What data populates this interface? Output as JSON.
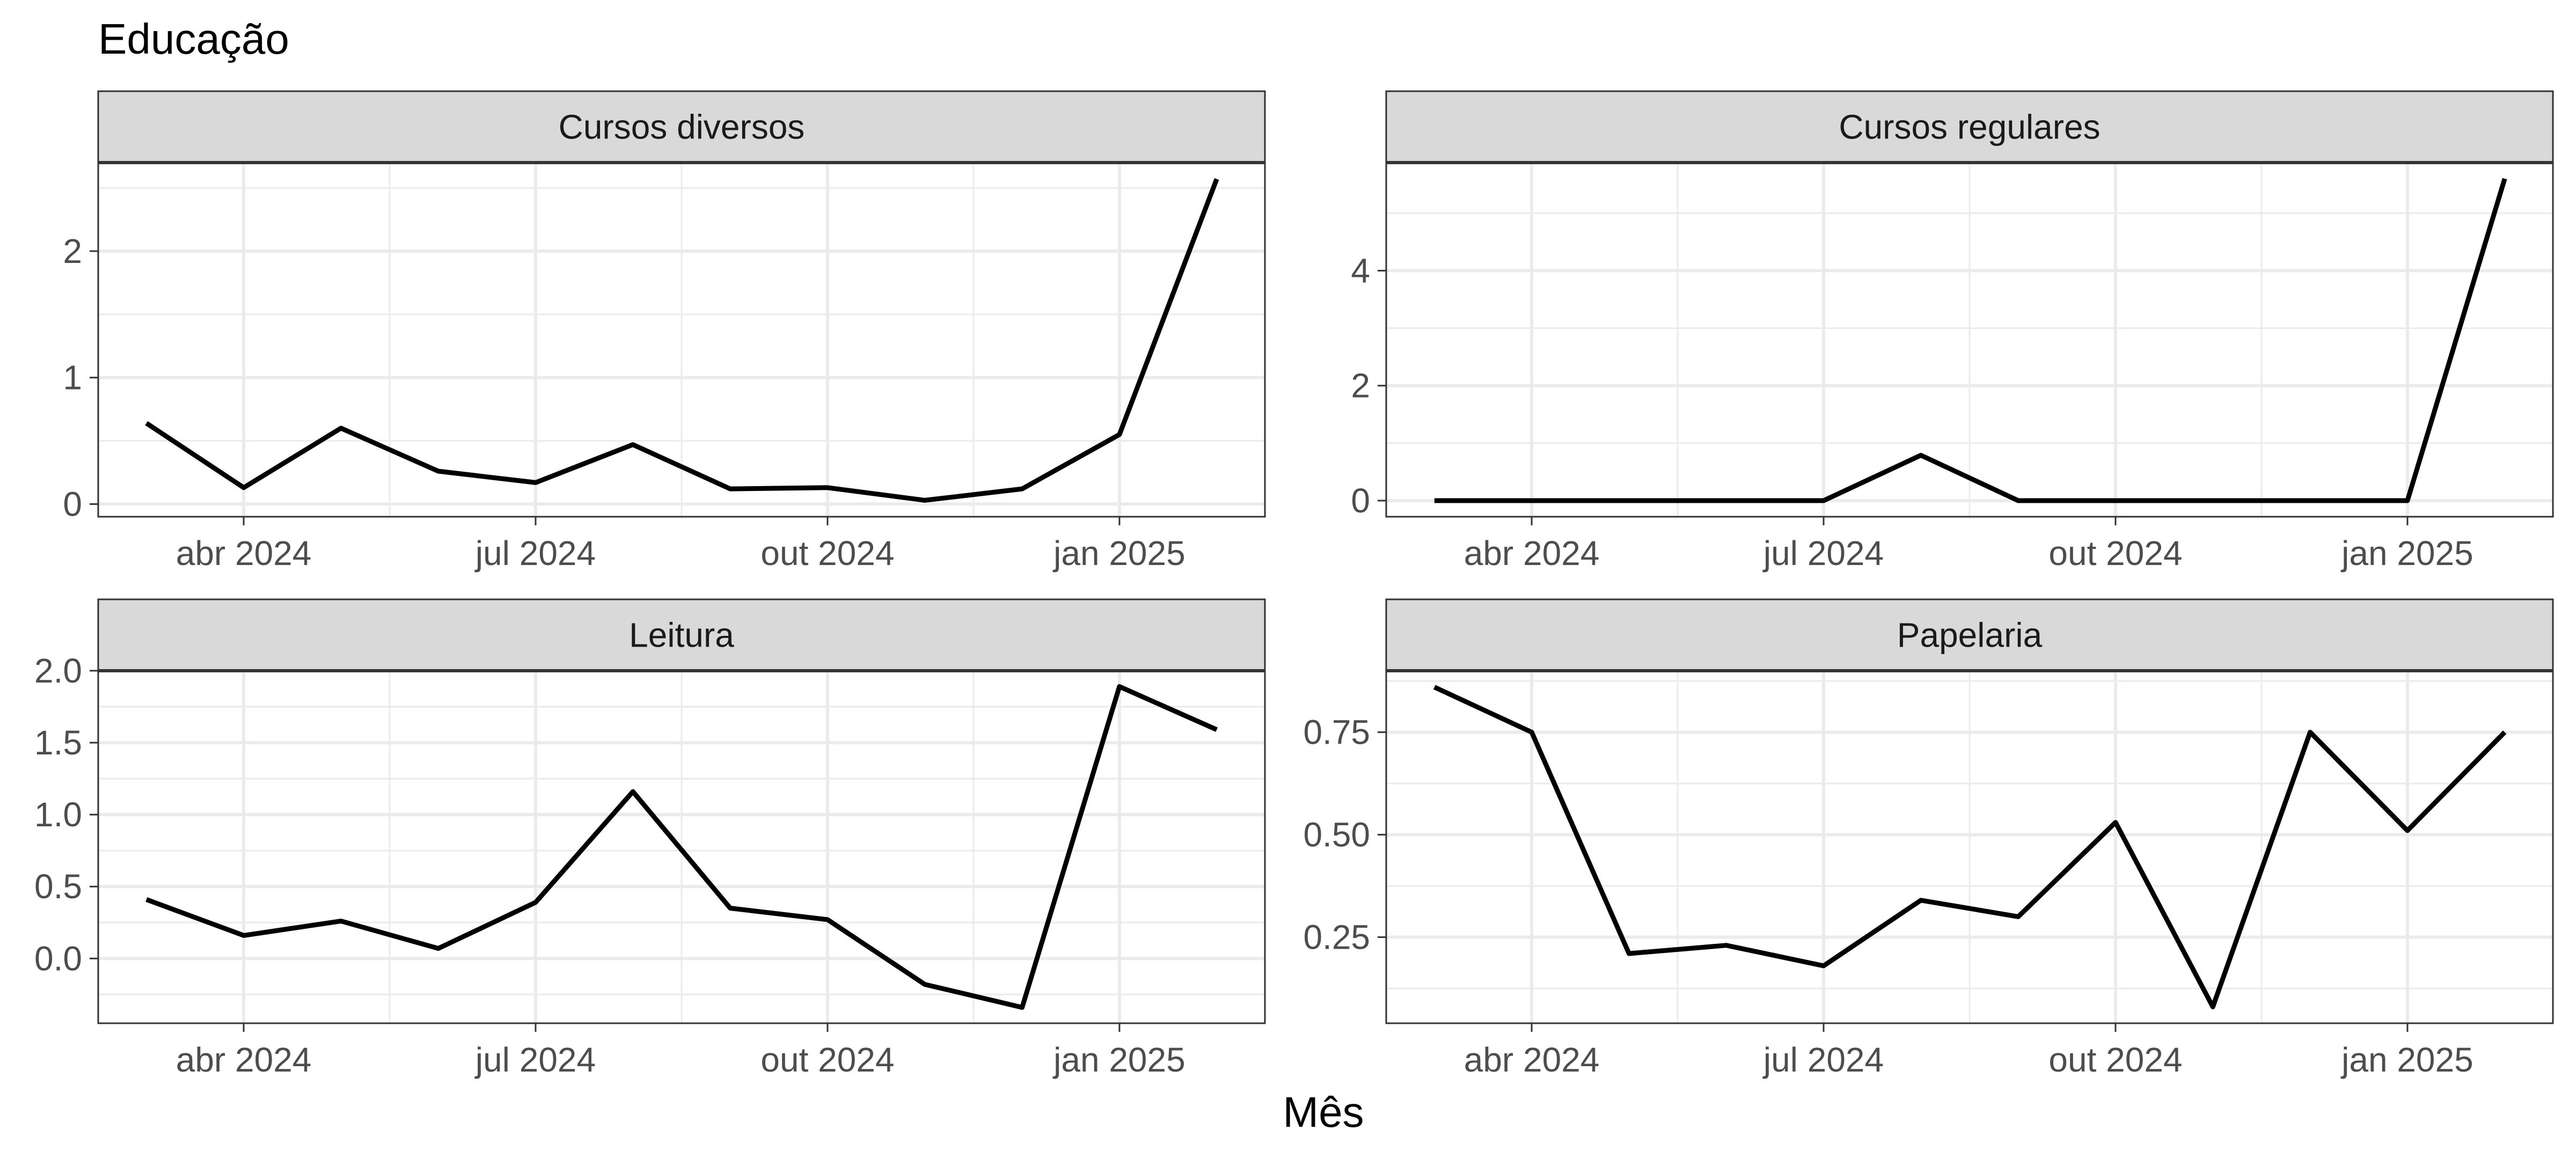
{
  "title": "Educação",
  "xlabel": "Mês",
  "colors": {
    "line": "#000000",
    "grid": "#ebebeb",
    "panel_border": "#333333",
    "strip_fill": "#d9d9d9",
    "tick_text": "#4d4d4d"
  },
  "chart_data": [
    {
      "type": "line",
      "facet": "Cursos diversos",
      "x": [
        "2024-03",
        "2024-04",
        "2024-05",
        "2024-06",
        "2024-07",
        "2024-08",
        "2024-09",
        "2024-10",
        "2024-11",
        "2024-12",
        "2025-01",
        "2025-02"
      ],
      "y": [
        0.64,
        0.13,
        0.6,
        0.26,
        0.17,
        0.47,
        0.12,
        0.13,
        0.03,
        0.12,
        0.55,
        2.57
      ],
      "xticks": [
        "2024-04",
        "2024-07",
        "2024-10",
        "2025-01"
      ],
      "xtick_labels": [
        "abr 2024",
        "jul 2024",
        "out 2024",
        "jan 2025"
      ],
      "yticks": [
        0,
        1,
        2
      ],
      "ytick_labels": [
        "0",
        "1",
        "2"
      ],
      "ylim": [
        -0.1,
        2.7
      ]
    },
    {
      "type": "line",
      "facet": "Cursos regulares",
      "x": [
        "2024-03",
        "2024-04",
        "2024-05",
        "2024-06",
        "2024-07",
        "2024-08",
        "2024-09",
        "2024-10",
        "2024-11",
        "2024-12",
        "2025-01",
        "2025-02"
      ],
      "y": [
        0.0,
        0.0,
        0.0,
        0.0,
        0.0,
        0.79,
        0.0,
        0.0,
        0.0,
        0.0,
        0.0,
        5.6
      ],
      "xticks": [
        "2024-04",
        "2024-07",
        "2024-10",
        "2025-01"
      ],
      "xtick_labels": [
        "abr 2024",
        "jul 2024",
        "out 2024",
        "jan 2025"
      ],
      "yticks": [
        0,
        2,
        4
      ],
      "ytick_labels": [
        "0",
        "2",
        "4"
      ],
      "ylim": [
        -0.28,
        5.88
      ]
    },
    {
      "type": "line",
      "facet": "Leitura",
      "x": [
        "2024-03",
        "2024-04",
        "2024-05",
        "2024-06",
        "2024-07",
        "2024-08",
        "2024-09",
        "2024-10",
        "2024-11",
        "2024-12",
        "2025-01",
        "2025-02"
      ],
      "y": [
        0.41,
        0.16,
        0.26,
        0.07,
        0.39,
        1.16,
        0.35,
        0.27,
        -0.18,
        -0.34,
        1.89,
        1.59
      ],
      "xticks": [
        "2024-04",
        "2024-07",
        "2024-10",
        "2025-01"
      ],
      "xtick_labels": [
        "abr 2024",
        "jul 2024",
        "out 2024",
        "jan 2025"
      ],
      "yticks": [
        0.0,
        0.5,
        1.0,
        1.5,
        2.0
      ],
      "ytick_labels": [
        "0.0",
        "0.5",
        "1.0",
        "1.5",
        "2.0"
      ],
      "ylim": [
        -0.45,
        2.0
      ]
    },
    {
      "type": "line",
      "facet": "Papelaria",
      "x": [
        "2024-03",
        "2024-04",
        "2024-05",
        "2024-06",
        "2024-07",
        "2024-08",
        "2024-09",
        "2024-10",
        "2024-11",
        "2024-12",
        "2025-01",
        "2025-02"
      ],
      "y": [
        0.86,
        0.75,
        0.21,
        0.23,
        0.18,
        0.34,
        0.3,
        0.53,
        0.08,
        0.75,
        0.51,
        0.75
      ],
      "xticks": [
        "2024-04",
        "2024-07",
        "2024-10",
        "2025-01"
      ],
      "xtick_labels": [
        "abr 2024",
        "jul 2024",
        "out 2024",
        "jan 2025"
      ],
      "yticks": [
        0.25,
        0.5,
        0.75
      ],
      "ytick_labels": [
        "0.25",
        "0.50",
        "0.75"
      ],
      "ylim": [
        0.04,
        0.9
      ]
    }
  ]
}
